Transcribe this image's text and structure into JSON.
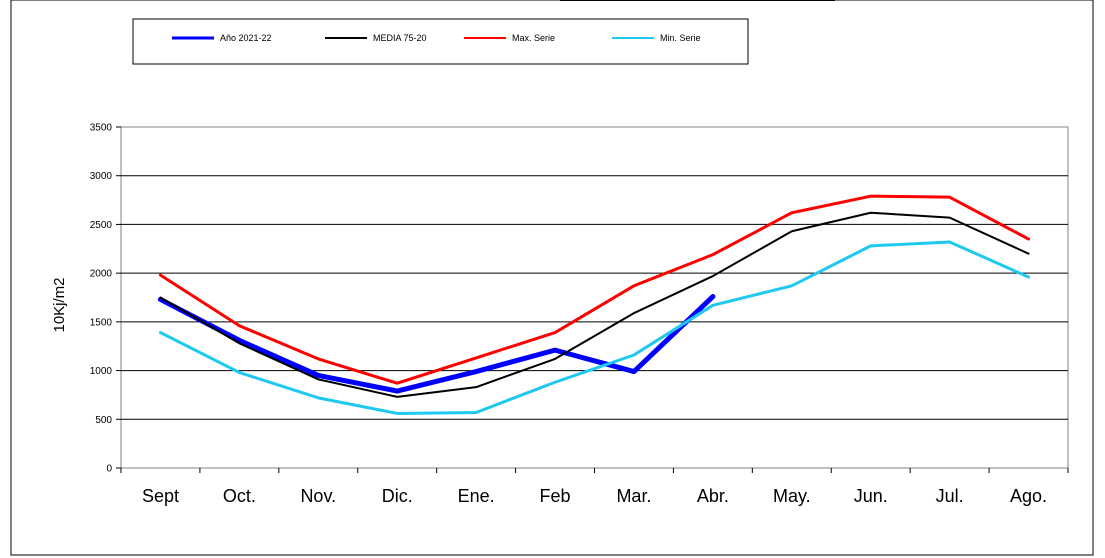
{
  "chart_data": {
    "type": "line",
    "title": "",
    "ylabel": "10Kj/m2",
    "xlabel": "",
    "ylim": [
      0,
      3500
    ],
    "yticks": [
      0,
      500,
      1000,
      1500,
      2000,
      2500,
      3000,
      3500
    ],
    "grid": true,
    "legend_position": "top",
    "categories": [
      "Sept",
      "Oct.",
      "Nov.",
      "Dic.",
      "Ene.",
      "Feb",
      "Mar.",
      "Abr.",
      "May.",
      "Jun.",
      "Jul.",
      "Ago."
    ],
    "series": [
      {
        "name": "Año 2021-22",
        "color": "#0000ff",
        "width": 5,
        "values": [
          1730,
          1310,
          950,
          790,
          990,
          1210,
          990,
          1760,
          null,
          null,
          null,
          null
        ]
      },
      {
        "name": "MEDIA 75-20",
        "color": "#000000",
        "width": 2,
        "values": [
          1750,
          1280,
          910,
          730,
          830,
          1120,
          1590,
          1970,
          2430,
          2620,
          2570,
          2200
        ]
      },
      {
        "name": "Max. Serie",
        "color": "#ff0000",
        "width": 3,
        "values": [
          1980,
          1460,
          1120,
          870,
          1130,
          1390,
          1870,
          2190,
          2620,
          2790,
          2780,
          2350
        ]
      },
      {
        "name": "Min. Serie",
        "color": "#1ec8f0",
        "width": 3,
        "values": [
          1390,
          980,
          720,
          560,
          570,
          880,
          1160,
          1670,
          1870,
          2280,
          2320,
          1960
        ]
      }
    ]
  }
}
